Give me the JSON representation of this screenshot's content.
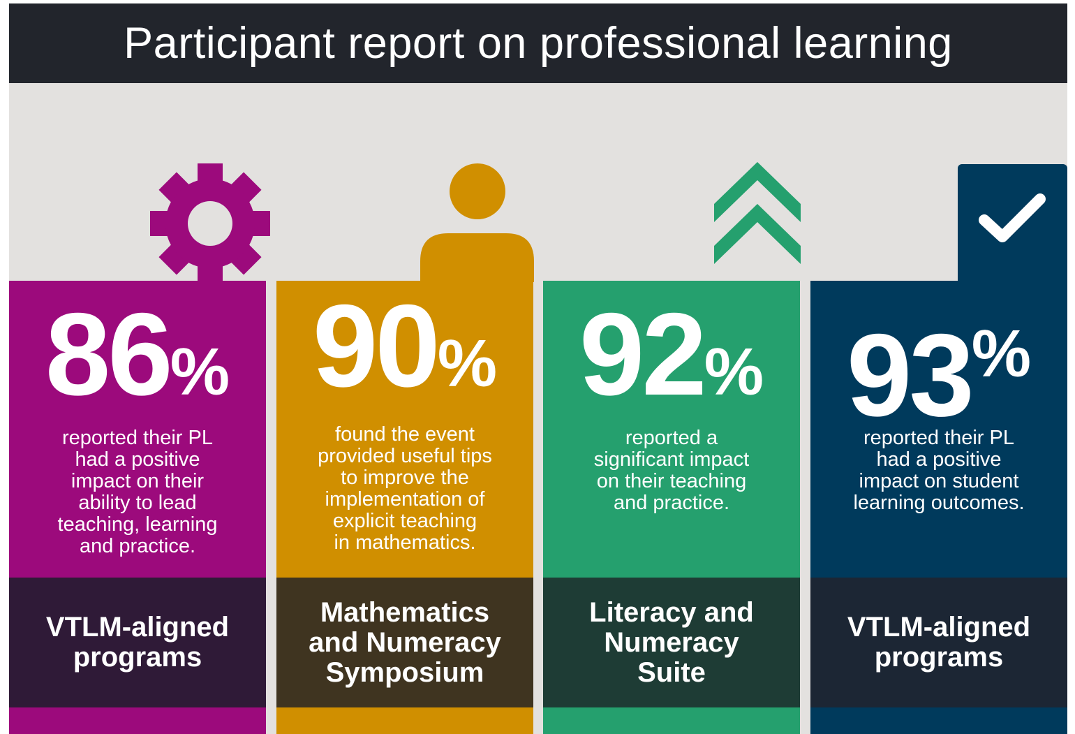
{
  "title": "Participant report on professional learning",
  "colors": {
    "background": "#e3e1df",
    "title_bar": "#22252c",
    "purple": "#9c0a7c",
    "purple_dark": "#2f1a37",
    "gold": "#d08f00",
    "gold_dark": "#3f3420",
    "green": "#25a06e",
    "green_dark": "#1e3c35",
    "navy": "#003a5c",
    "navy_dark": "#1c2634"
  },
  "columns": [
    {
      "icon": "gear-icon",
      "value": "86",
      "percent_sign": "%",
      "description": "reported their PL\nhad a positive\nimpact on their\nability to lead\nteaching, learning\nand practice.",
      "program": "VTLM-aligned\nprograms"
    },
    {
      "icon": "person-icon",
      "value": "90",
      "percent_sign": "%",
      "description": "found the event\nprovided useful tips\nto improve the\nimplementation of\nexplicit teaching\nin mathematics.",
      "program": "Mathematics\nand Numeracy\nSymposium"
    },
    {
      "icon": "double-chevron-up-icon",
      "value": "92",
      "percent_sign": "%",
      "description": "reported a\nsignificant impact\non their teaching\nand practice.",
      "program": "Literacy and\nNumeracy\nSuite"
    },
    {
      "icon": "checkmark-icon",
      "value": "93",
      "percent_sign": "%",
      "description": "reported their PL\nhad a positive\nimpact on student\nlearning outcomes.",
      "program": "VTLM-aligned\nprograms"
    }
  ]
}
